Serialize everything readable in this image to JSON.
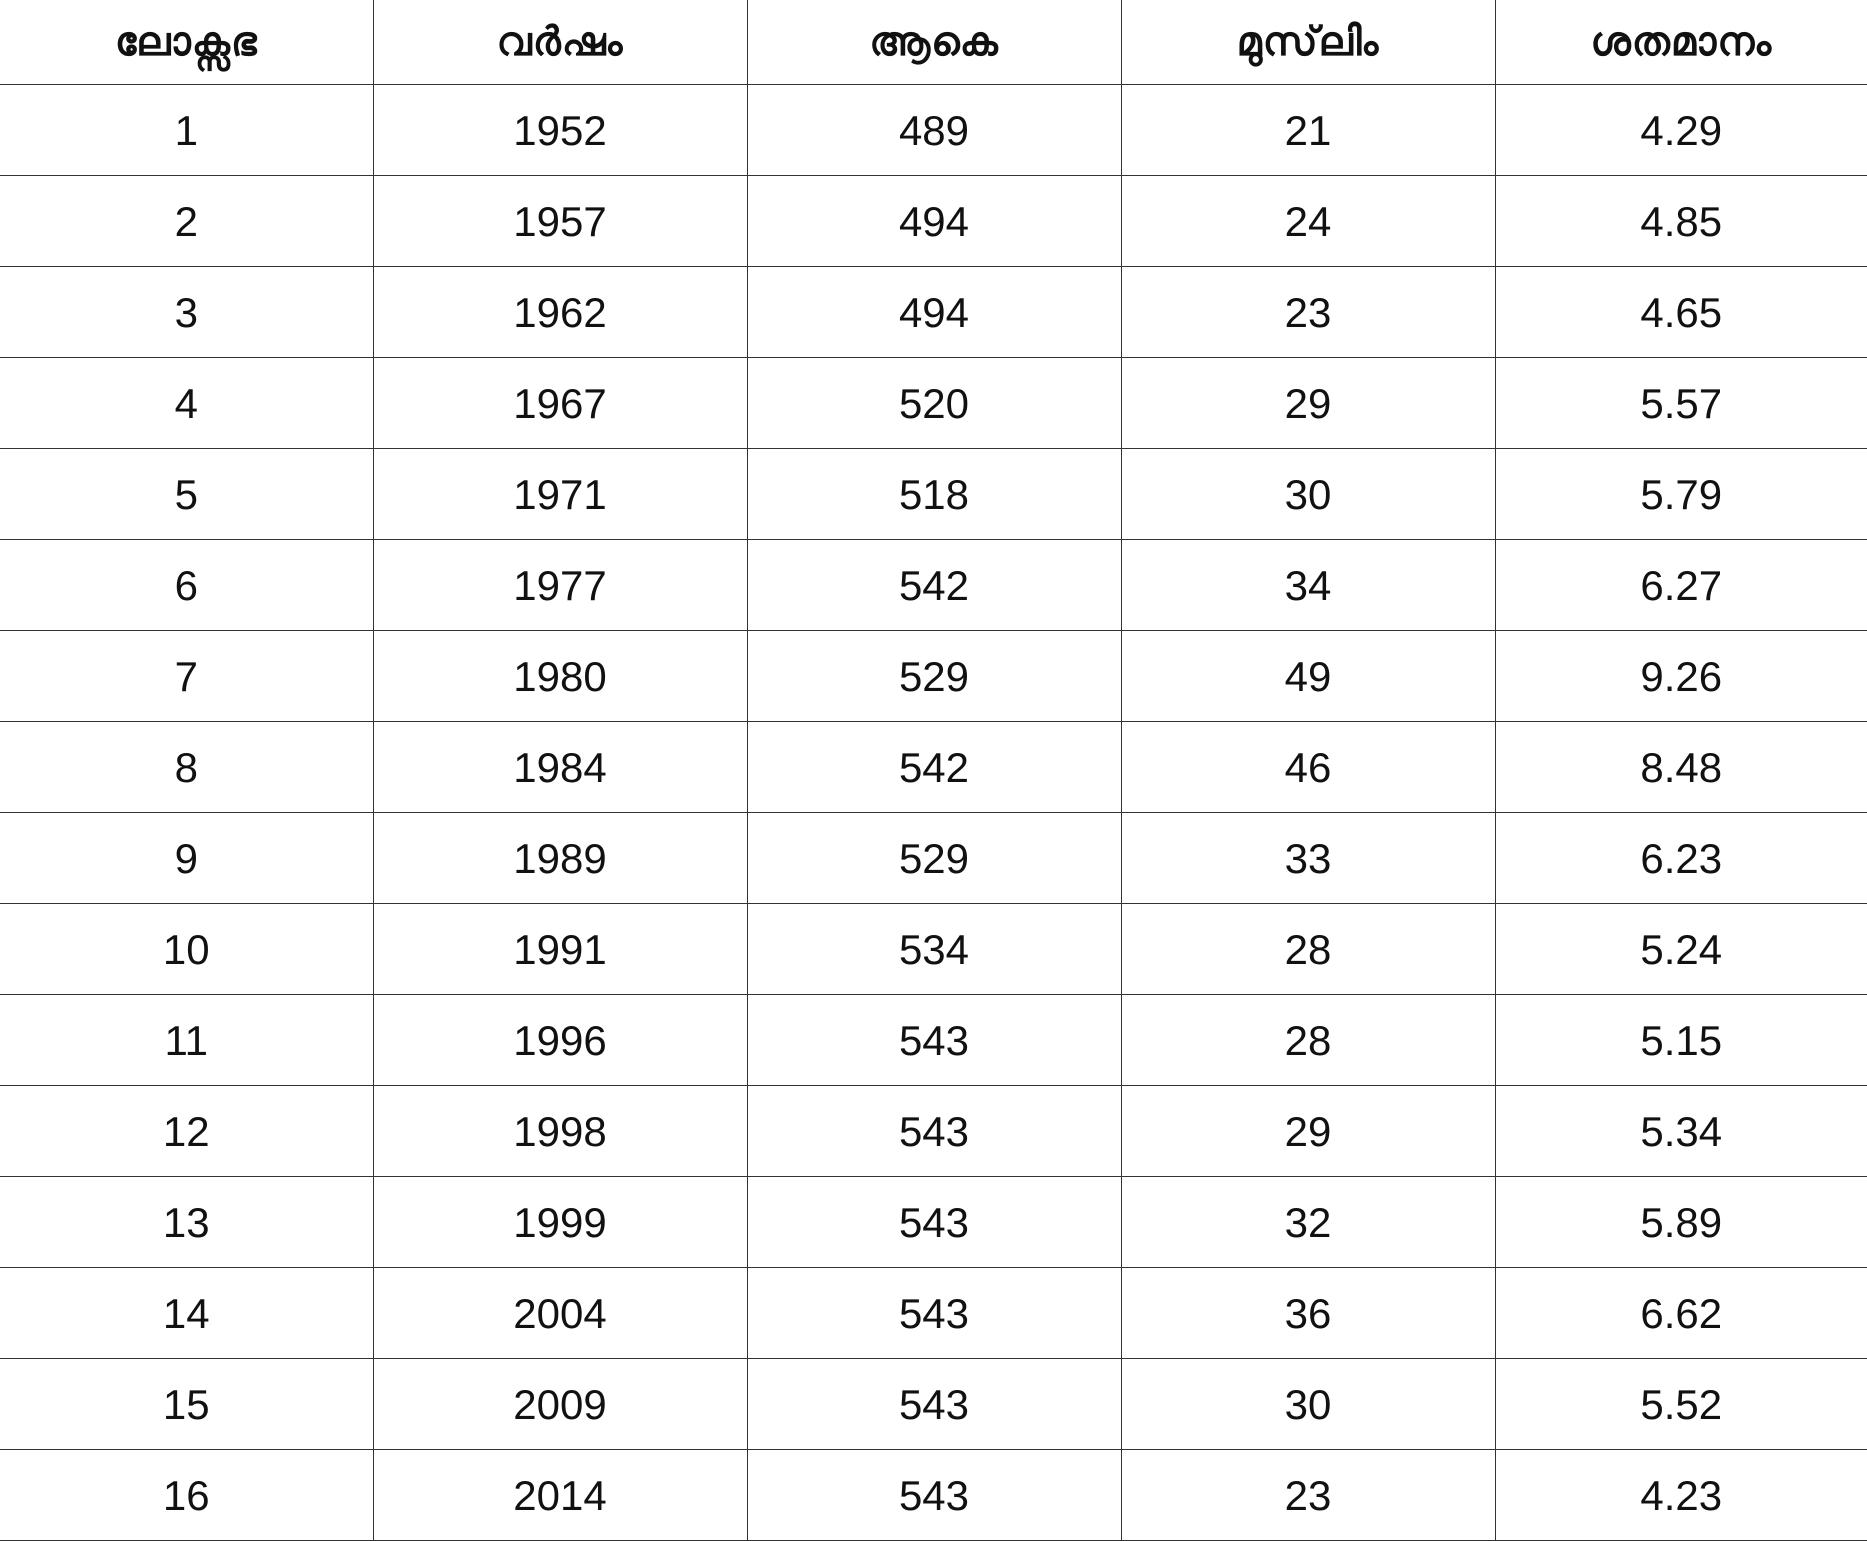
{
  "table": {
    "headers": [
      "ലോക്സഭ",
      "വർഷം",
      "ആകെ",
      "മുസ്‌ലിം",
      "ശതമാനം"
    ],
    "rows": [
      [
        "1",
        "1952",
        "489",
        "21",
        "4.29"
      ],
      [
        "2",
        "1957",
        "494",
        "24",
        "4.85"
      ],
      [
        "3",
        "1962",
        "494",
        "23",
        "4.65"
      ],
      [
        "4",
        "1967",
        "520",
        "29",
        "5.57"
      ],
      [
        "5",
        "1971",
        "518",
        "30",
        "5.79"
      ],
      [
        "6",
        "1977",
        "542",
        "34",
        "6.27"
      ],
      [
        "7",
        "1980",
        "529",
        "49",
        "9.26"
      ],
      [
        "8",
        "1984",
        "542",
        "46",
        "8.48"
      ],
      [
        "9",
        "1989",
        "529",
        "33",
        "6.23"
      ],
      [
        "10",
        "1991",
        "534",
        "28",
        "5.24"
      ],
      [
        "11",
        "1996",
        "543",
        "28",
        "5.15"
      ],
      [
        "12",
        "1998",
        "543",
        "29",
        "5.34"
      ],
      [
        "13",
        "1999",
        "543",
        "32",
        "5.89"
      ],
      [
        "14",
        "2004",
        "543",
        "36",
        "6.62"
      ],
      [
        "15",
        "2009",
        "543",
        "30",
        "5.52"
      ],
      [
        "16",
        "2014",
        "543",
        "23",
        "4.23"
      ]
    ]
  }
}
